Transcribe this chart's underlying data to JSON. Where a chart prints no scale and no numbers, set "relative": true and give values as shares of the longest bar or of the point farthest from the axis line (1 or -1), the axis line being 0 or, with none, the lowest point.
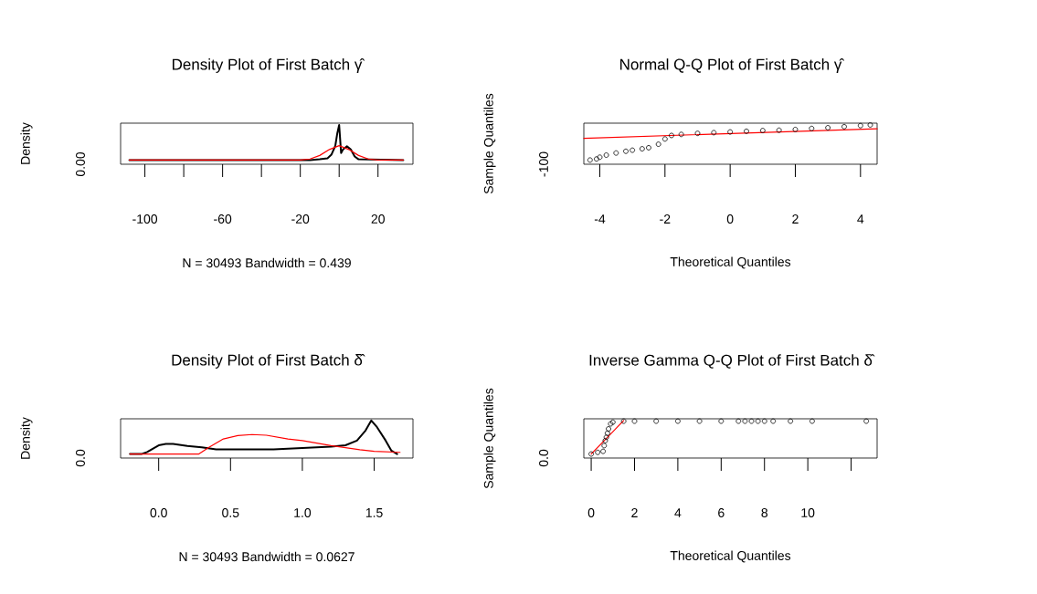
{
  "chart_data": [
    {
      "type": "line",
      "relative": true,
      "title": "Density Plot of First Batch γ̂",
      "xlabel": "N = 30493   Bandwidth = 0.439",
      "ylabel": "Density",
      "annotations": [
        "0.00"
      ],
      "xlim": [
        -112.5,
        38
      ],
      "xticks": [
        -100,
        {
          "value": -80,
          "label": null
        },
        -60,
        {
          "value": -40,
          "label": null
        },
        -20,
        {
          "value": 0,
          "label": null
        },
        20
      ],
      "series": [
        {
          "color": "#000000",
          "x": [
            -108,
            -15,
            -10,
            -6,
            -4,
            -2,
            -1,
            0,
            1,
            2,
            4,
            6,
            8,
            10,
            33
          ],
          "values": [
            0,
            0,
            0.02,
            0.05,
            0.15,
            0.4,
            0.75,
            1,
            0.2,
            0.3,
            0.39,
            0.3,
            0.1,
            0.02,
            0
          ]
        },
        {
          "color": "#ff0000",
          "x": [
            -108,
            -20,
            -15,
            -10,
            -5,
            0,
            5,
            10,
            15,
            20,
            33
          ],
          "values": [
            0,
            0,
            0.03,
            0.13,
            0.3,
            0.41,
            0.3,
            0.13,
            0.03,
            0,
            0
          ]
        }
      ]
    },
    {
      "type": "scatter",
      "relative": true,
      "title": "Normal Q-Q Plot of First Batch γ̂",
      "xlabel": "Theoretical Quantiles",
      "ylabel": "Sample Quantiles",
      "annotations": [
        "-100"
      ],
      "xlim": [
        -4.49,
        4.51
      ],
      "xticks": [
        -4,
        -2,
        0,
        2,
        4
      ],
      "series": [
        {
          "marker": "circle",
          "color": "#000000",
          "x": [
            -4.3,
            -4.1,
            -4,
            -3.8,
            -3.5,
            -3.2,
            -3,
            -2.7,
            -2.5,
            -2.2,
            -2,
            -1.8,
            -1.5,
            -1,
            -0.5,
            0,
            0.5,
            1,
            1.5,
            2,
            2.5,
            3,
            3.5,
            4,
            4.3
          ],
          "values": [
            0,
            0.03,
            0.08,
            0.14,
            0.2,
            0.25,
            0.28,
            0.32,
            0.35,
            0.45,
            0.6,
            0.7,
            0.73,
            0.76,
            0.78,
            0.8,
            0.82,
            0.84,
            0.85,
            0.87,
            0.9,
            0.92,
            0.95,
            0.98,
            1
          ]
        },
        {
          "type": "line",
          "color": "#ff0000",
          "x": [
            -4.49,
            4.51
          ],
          "values": [
            0.62,
            0.89
          ]
        }
      ]
    },
    {
      "type": "line",
      "relative": true,
      "title": "Density Plot of First Batch δ̂",
      "xlabel": "N = 30493   Bandwidth = 0.0627",
      "ylabel": "Density",
      "annotations": [
        "0.0"
      ],
      "xlim": [
        -0.265,
        1.77
      ],
      "xticks": [
        {
          "value": 0,
          "label": "0.0"
        },
        0.5,
        {
          "value": 1,
          "label": "1.0"
        },
        1.5
      ],
      "series": [
        {
          "color": "#000000",
          "x": [
            -0.2,
            -0.12,
            -0.08,
            0,
            0.05,
            0.1,
            0.2,
            0.3,
            0.4,
            0.5,
            0.8,
            1.0,
            1.2,
            1.3,
            1.38,
            1.44,
            1.48,
            1.52,
            1.58,
            1.62,
            1.66
          ],
          "values": [
            0,
            0,
            0.06,
            0.26,
            0.3,
            0.3,
            0.24,
            0.2,
            0.14,
            0.14,
            0.14,
            0.18,
            0.22,
            0.26,
            0.4,
            0.7,
            1,
            0.8,
            0.4,
            0.1,
            0
          ]
        },
        {
          "color": "#ff0000",
          "x": [
            -0.2,
            0.28,
            0.35,
            0.45,
            0.55,
            0.65,
            0.75,
            0.9,
            1.0,
            1.2,
            1.4,
            1.5,
            1.68
          ],
          "values": [
            0,
            0,
            0.2,
            0.45,
            0.55,
            0.58,
            0.56,
            0.45,
            0.4,
            0.25,
            0.13,
            0.08,
            0.05
          ]
        }
      ]
    },
    {
      "type": "scatter",
      "relative": true,
      "title": "Inverse Gamma Q-Q Plot of First Batch δ̂",
      "xlabel": "Theoretical Quantiles",
      "ylabel": "Sample Quantiles",
      "annotations": [
        "0.0"
      ],
      "xlim": [
        -0.34,
        13.2
      ],
      "xticks": [
        0,
        2,
        4,
        6,
        8,
        10,
        {
          "value": 12,
          "label": null
        }
      ],
      "series": [
        {
          "marker": "circle",
          "color": "#000000",
          "x": [
            0,
            0.3,
            0.55,
            0.6,
            0.65,
            0.7,
            0.75,
            0.8,
            0.9,
            1.0,
            1.5,
            2,
            3,
            4,
            5,
            6,
            6.8,
            7.1,
            7.4,
            7.7,
            8,
            8.4,
            9.2,
            10.2,
            12.7
          ],
          "values": [
            0,
            0.05,
            0.08,
            0.25,
            0.4,
            0.5,
            0.62,
            0.75,
            0.9,
            0.95,
            0.98,
            0.98,
            0.98,
            0.98,
            0.98,
            0.98,
            0.98,
            0.98,
            0.98,
            0.98,
            0.98,
            0.98,
            0.98,
            0.98,
            0.98
          ]
        },
        {
          "type": "line",
          "color": "#ff0000",
          "x": [
            0,
            1.5
          ],
          "values": [
            0,
            1
          ]
        }
      ]
    }
  ]
}
